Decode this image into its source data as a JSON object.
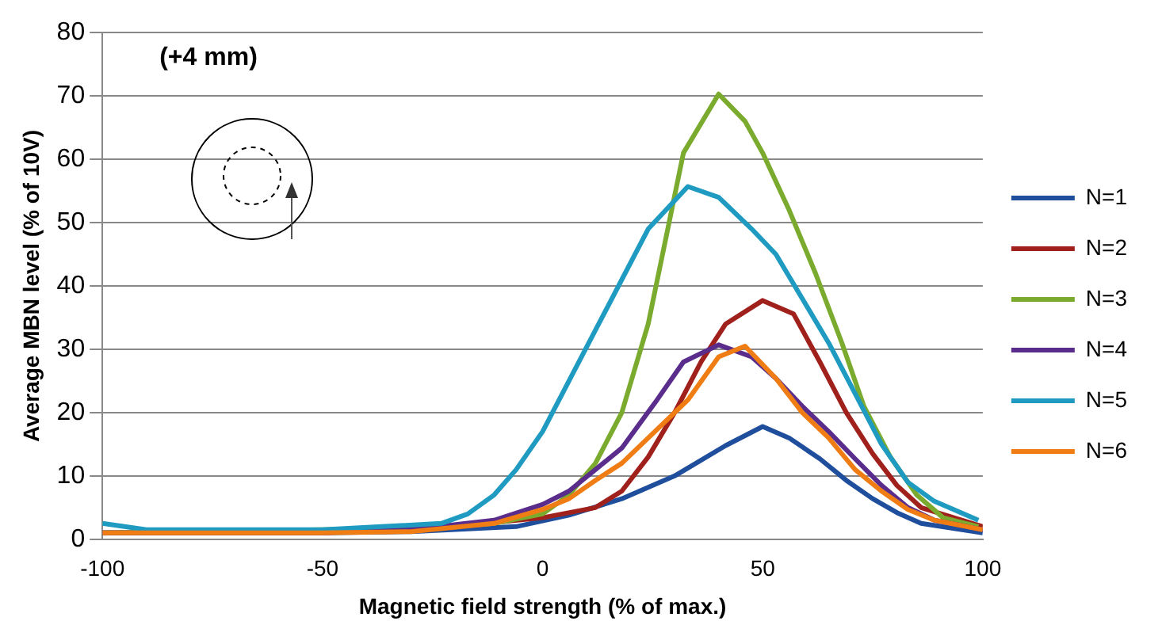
{
  "chart_data": {
    "type": "line",
    "xlabel": "Magnetic field strength (% of max.)",
    "ylabel": "Average MBN level (% of 10V)",
    "annotations": [
      "(+4 mm)"
    ],
    "xlim": [
      -100,
      100
    ],
    "xticks": [
      -100,
      -50,
      0,
      50,
      100
    ],
    "ylim": [
      0,
      80
    ],
    "yticks": [
      0,
      10,
      20,
      30,
      40,
      50,
      60,
      70,
      80
    ],
    "grid": "y",
    "legend": "right",
    "marker": "none",
    "line_style": "solid",
    "series": [
      {
        "name": "N=1",
        "color": "#1f4e9c",
        "x": [
          -100,
          -50,
          -30,
          -6,
          6,
          18,
          30,
          41.6,
          50,
          56,
          63,
          69,
          75,
          80.5,
          86,
          100
        ],
        "values": [
          1,
          1,
          1.2,
          2,
          3.8,
          6.4,
          10,
          14.8,
          17.8,
          16,
          12.7,
          9.3,
          6.4,
          4.2,
          2.5,
          1
        ]
      },
      {
        "name": "N=2",
        "color": "#a0201c",
        "x": [
          -100,
          -50,
          -20,
          0,
          12,
          18,
          24,
          30,
          36,
          41.6,
          50,
          57,
          63,
          69,
          75,
          80.5,
          86,
          100
        ],
        "values": [
          1,
          1,
          2,
          3.4,
          5,
          7.6,
          13,
          20,
          28,
          34,
          37.7,
          35.6,
          28,
          20,
          13.5,
          8.5,
          5,
          2
        ]
      },
      {
        "name": "N=3",
        "color": "#7aab2e",
        "x": [
          -100,
          -50,
          -20,
          -11,
          0,
          6,
          12,
          18,
          24,
          32,
          40,
          46,
          50,
          56,
          62,
          68,
          73,
          79,
          85,
          91,
          99
        ],
        "values": [
          1,
          1.5,
          2,
          2.5,
          4,
          7,
          12,
          20,
          34,
          61,
          70.3,
          66,
          61,
          52,
          42,
          31,
          21,
          13,
          7,
          3.4,
          2
        ]
      },
      {
        "name": "N=4",
        "color": "#5a2d8c",
        "x": [
          -100,
          -50,
          -30,
          -11,
          0,
          6,
          12,
          18,
          26,
          32,
          40,
          47.5,
          53,
          59,
          65,
          71,
          77,
          83,
          89,
          100
        ],
        "values": [
          1,
          1,
          1.5,
          3,
          5.5,
          7.6,
          11,
          14.4,
          22,
          28,
          30.7,
          28.8,
          25.4,
          21,
          17,
          12.7,
          8.5,
          5,
          3,
          1.5
        ]
      },
      {
        "name": "N=5",
        "color": "#1f9ac0",
        "x": [
          -100,
          -90,
          -50,
          -23,
          -17,
          -11,
          -6,
          0,
          6,
          12,
          18,
          24,
          33,
          40,
          47.5,
          53,
          59,
          65,
          71,
          77,
          83,
          89,
          99
        ],
        "values": [
          2.5,
          1.5,
          1.5,
          2.5,
          4,
          7,
          11,
          17,
          25,
          33,
          41,
          49,
          55.7,
          54,
          49,
          45,
          38,
          31,
          23,
          15,
          9,
          6,
          3
        ]
      },
      {
        "name": "N=6",
        "color": "#f07d14",
        "x": [
          -100,
          -50,
          -30,
          -11,
          0,
          6,
          12,
          18,
          24,
          33,
          40,
          46,
          53,
          59,
          65,
          71,
          77,
          83,
          89,
          100
        ],
        "values": [
          1,
          1,
          1.2,
          2.5,
          4.7,
          6.4,
          9.3,
          12,
          16,
          22,
          28.8,
          30.5,
          25.4,
          20,
          16,
          11,
          7.6,
          4.7,
          3,
          1.5
        ]
      }
    ]
  }
}
